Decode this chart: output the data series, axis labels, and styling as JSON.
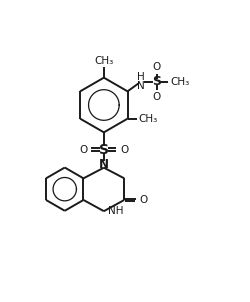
{
  "bg_color": "#ffffff",
  "line_color": "#1a1a1a",
  "line_width": 1.4,
  "font_size": 8,
  "figsize": [
    2.5,
    3.02
  ],
  "dpi": 100,
  "xlim": [
    0,
    10
  ],
  "ylim": [
    0,
    12
  ]
}
